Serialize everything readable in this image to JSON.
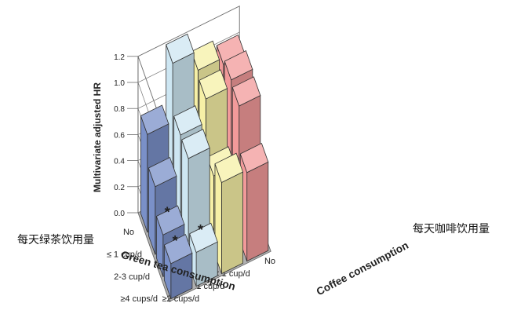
{
  "chart_data": {
    "type": "bar",
    "subtype": "3d-grouped-bar",
    "title": "",
    "ylabel": "Multivariate adjusted HR",
    "ylim": [
      0,
      1.2
    ],
    "yticks": [
      "0.0",
      "0.2",
      "0.4",
      "0.6",
      "0.8",
      "1.0",
      "1.2"
    ],
    "xaxis": {
      "label": "Green tea consumption",
      "label_cn": "每天绿茶饮用量",
      "categories": [
        "No",
        "≤ 1 cup/d",
        "2-3 cup/d",
        "≥4 cups/d"
      ]
    },
    "zaxis": {
      "label": "Coffee consumption",
      "label_cn": "每天咖啡饮用量",
      "categories": [
        "No",
        "< 1 cup/d",
        "1 cup/d",
        "≥2 cups/d"
      ]
    },
    "series": [
      {
        "coffee": "No",
        "color": "#f29a9a",
        "values": [
          1.0,
          1.05,
          1.02,
          0.68
        ]
      },
      {
        "coffee": "< 1 cup/d",
        "color": "#f6f0a6",
        "values": [
          1.05,
          1.0,
          0.58,
          0.7
        ]
      },
      {
        "coffee": "1 cup/d",
        "color": "#cde6f2",
        "values": [
          1.2,
          0.82,
          0.81,
          0.26
        ]
      },
      {
        "coffee": "≥2 cups/d",
        "color": "#7a90c8",
        "values": [
          0.75,
          0.52,
          0.32,
          0.27
        ]
      }
    ],
    "significant": [
      {
        "green_tea": "2-3 cup/d",
        "coffee": "≥2 cups/d",
        "mark": "*"
      },
      {
        "green_tea": "≥4 cups/d",
        "coffee": "≥2 cups/d",
        "mark": "*"
      },
      {
        "green_tea": "≥4 cups/d",
        "coffee": "1 cup/d",
        "mark": "*"
      }
    ],
    "grid": true
  }
}
